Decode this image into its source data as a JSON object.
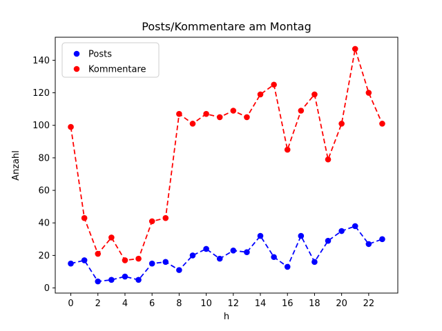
{
  "chart_data": {
    "type": "line",
    "title": "Posts/Kommentare am Montag",
    "xlabel": "h",
    "ylabel": "Anzahl",
    "x": [
      0,
      1,
      2,
      3,
      4,
      5,
      6,
      7,
      8,
      9,
      10,
      11,
      12,
      13,
      14,
      15,
      16,
      17,
      18,
      19,
      20,
      21,
      22,
      23
    ],
    "series": [
      {
        "name": "Posts",
        "color": "#0000ff",
        "values": [
          15,
          17,
          4,
          5,
          7,
          5,
          15,
          16,
          11,
          20,
          24,
          18,
          23,
          22,
          32,
          19,
          13,
          32,
          16,
          29,
          35,
          38,
          27,
          30
        ]
      },
      {
        "name": "Kommentare",
        "color": "#ff0000",
        "values": [
          99,
          43,
          21,
          31,
          17,
          18,
          41,
          43,
          107,
          101,
          107,
          105,
          109,
          105,
          119,
          125,
          85,
          109,
          119,
          79,
          101,
          147,
          120,
          101
        ]
      }
    ],
    "xticks": [
      0,
      2,
      4,
      6,
      8,
      10,
      12,
      14,
      16,
      18,
      20,
      22
    ],
    "yticks": [
      0,
      20,
      40,
      60,
      80,
      100,
      120,
      140
    ],
    "xlim": [
      -1.15,
      24.15
    ],
    "ylim": [
      -3.15,
      154.15
    ],
    "grid": false,
    "line_style": "dashed",
    "marker": "circle",
    "legend_position": "upper left",
    "background_color": "#ffffff",
    "axis_color": "#000000",
    "legend_border_color": "#cccccc"
  }
}
